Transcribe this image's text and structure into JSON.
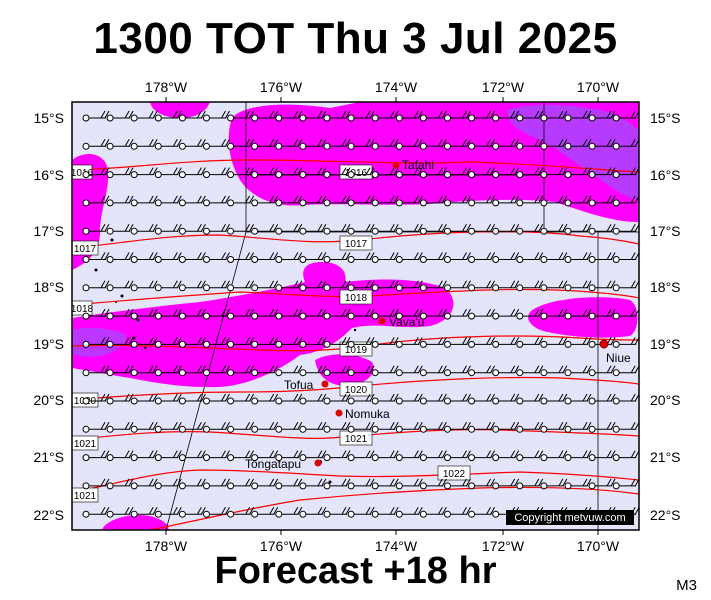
{
  "title": "1300 TOT Thu 3 Jul 2025",
  "footer": "Forecast +18 hr",
  "model": "M3",
  "copyright": "Copyright metvuw.com",
  "axes": {
    "lon_labels": [
      "178°W",
      "176°W",
      "174°W",
      "172°W",
      "170°W"
    ],
    "lat_labels": [
      "15°S",
      "16°S",
      "17°S",
      "18°S",
      "19°S",
      "20°S",
      "21°S",
      "22°S"
    ]
  },
  "places": [
    {
      "name": "Tafahi"
    },
    {
      "name": "Vava'u"
    },
    {
      "name": "Niue"
    },
    {
      "name": "Tofua"
    },
    {
      "name": "Nomuka"
    },
    {
      "name": "Tongatapu"
    }
  ],
  "isobars": [
    "1016",
    "1017",
    "1018",
    "1019",
    "1020",
    "1021",
    "1022"
  ],
  "colors": {
    "ocean": "#e4e4fa",
    "rain_light": "#ff00ff",
    "rain_heavy": "#aa44ff",
    "isobar": "#ff0000",
    "place_dot": "#e00000"
  }
}
